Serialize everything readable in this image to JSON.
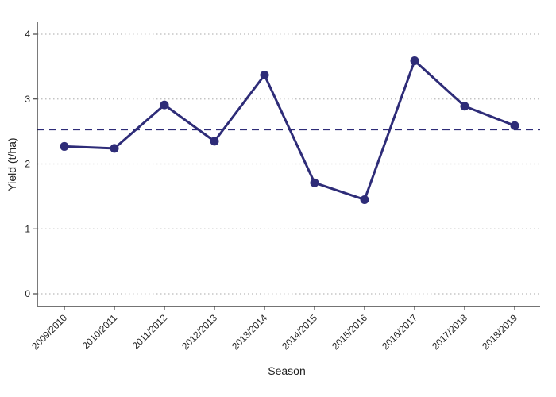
{
  "chart_data": {
    "type": "line",
    "title": "",
    "xlabel": "Season",
    "ylabel": "Yield (t/ha)",
    "categories": [
      "2009/2010",
      "2010/2011",
      "2011/2012",
      "2012/2013",
      "2013/2014",
      "2014/2015",
      "2015/2016",
      "2016/2017",
      "2017/2018",
      "2018/2019"
    ],
    "series": [
      {
        "values": [
          2.27,
          2.24,
          2.91,
          2.35,
          3.37,
          1.71,
          1.45,
          3.59,
          2.89,
          2.59
        ]
      }
    ],
    "reference_line": {
      "y": 2.53,
      "style": "dashed"
    },
    "ylim": [
      0,
      4
    ],
    "yticks": [
      0,
      1,
      2,
      3,
      4
    ],
    "grid": "horizontal dotted",
    "legend": "none",
    "colors": {
      "series": "#2e2c78",
      "grid": "#bbbbbb",
      "axis": "#222222"
    }
  }
}
